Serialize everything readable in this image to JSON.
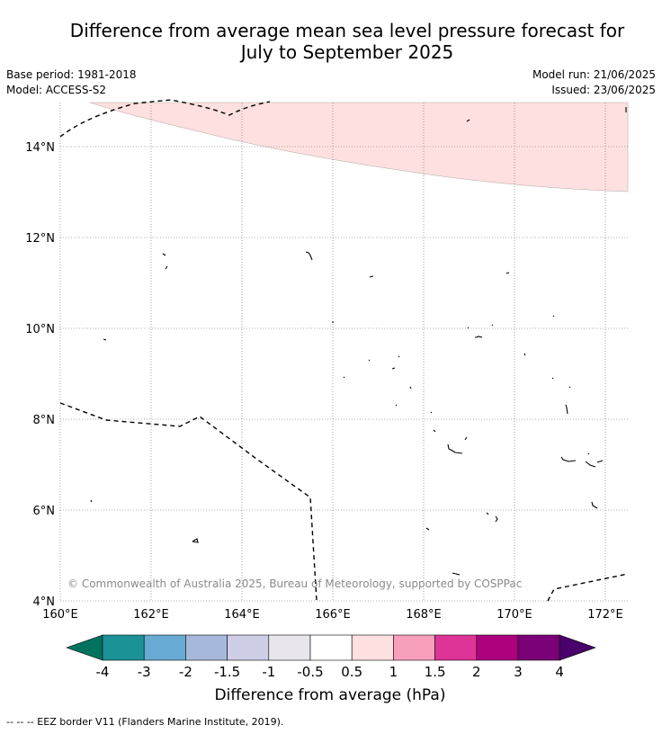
{
  "title_line1": "Difference from average mean sea level pressure forecast for",
  "title_line2": "July to September 2025",
  "base_period": "Base period: 1981-2018",
  "model": "Model: ACCESS-S2",
  "model_run": "Model run: 21/06/2025",
  "issued": "Issued: 23/06/2025",
  "copyright": "© Commonwealth of Australia 2025, Bureau of Meteorology, supported by COSPPac",
  "footer_legend": "--  --  -- EEZ border V11 (Flanders Marine Institute, 2019).",
  "map": {
    "lat_ticks": [
      "14°N",
      "12°N",
      "10°N",
      "8°N",
      "6°N",
      "4°N"
    ],
    "lon_ticks": [
      "160°E",
      "162°E",
      "164°E",
      "166°E",
      "168°E",
      "170°E",
      "172°E"
    ],
    "shaded_region_color": "#fde0df",
    "shaded_region_category": "0.5 to 1"
  },
  "colorbar": {
    "label": "Difference from average (hPa)",
    "tick_labels": [
      "-4",
      "-3",
      "-2",
      "-1.5",
      "-1",
      "-0.5",
      "0.5",
      "1",
      "1.5",
      "2",
      "3",
      "4"
    ],
    "colors": [
      "#00735f",
      "#1b9296",
      "#67aad4",
      "#a6b9db",
      "#cdcde6",
      "#e8e6ec",
      "#ffffff",
      "#fde0df",
      "#f89fbc",
      "#de3498",
      "#ad017e",
      "#7a0177",
      "#4a006a"
    ]
  }
}
